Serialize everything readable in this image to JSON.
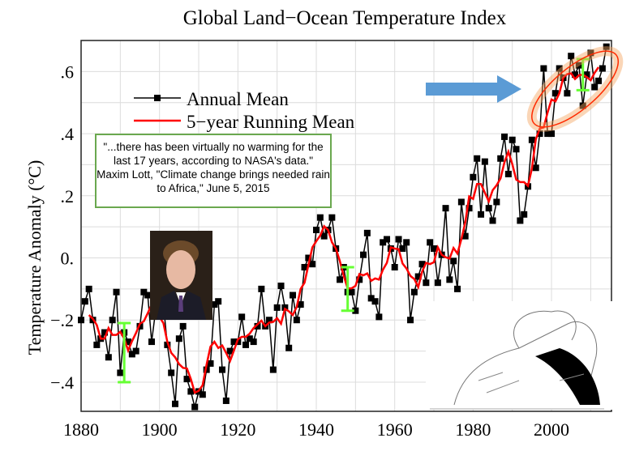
{
  "chart_data": {
    "type": "line",
    "title": "Global Land−Ocean Temperature Index",
    "xlabel": "",
    "ylabel": "Temperature Anomaly (°C)",
    "xlim": [
      1880,
      2015.3
    ],
    "ylim": [
      -0.494,
      0.7
    ],
    "grid": true,
    "x_ticks": [
      1880,
      1900,
      1920,
      1940,
      1960,
      1980,
      2000
    ],
    "x_tick_labels": [
      "1880",
      "1900",
      "1920",
      "1940",
      "1960",
      "1980",
      "2000"
    ],
    "y_ticks": [
      -0.4,
      -0.2,
      0,
      0.2,
      0.4,
      0.6
    ],
    "y_tick_labels": [
      "−.4",
      "−.2",
      "0.",
      ".2",
      ".4",
      ".6"
    ],
    "legend": {
      "placement": "top-left",
      "entries": [
        "Annual Mean",
        "5−year Running Mean"
      ]
    },
    "series": [
      {
        "name": "Annual Mean",
        "color": "#000000",
        "x_start": 1880,
        "values": [
          -0.2,
          -0.14,
          -0.1,
          -0.2,
          -0.28,
          -0.26,
          -0.24,
          -0.32,
          -0.2,
          -0.11,
          -0.37,
          -0.24,
          -0.27,
          -0.31,
          -0.3,
          -0.22,
          -0.11,
          -0.12,
          -0.27,
          -0.17,
          -0.08,
          -0.15,
          -0.28,
          -0.37,
          -0.47,
          -0.26,
          -0.22,
          -0.39,
          -0.43,
          -0.48,
          -0.43,
          -0.44,
          -0.36,
          -0.34,
          -0.15,
          -0.14,
          -0.36,
          -0.46,
          -0.3,
          -0.27,
          -0.27,
          -0.19,
          -0.28,
          -0.26,
          -0.27,
          -0.22,
          -0.1,
          -0.22,
          -0.2,
          -0.36,
          -0.16,
          -0.09,
          -0.16,
          -0.29,
          -0.12,
          -0.2,
          -0.15,
          -0.03,
          0.0,
          -0.02,
          0.09,
          0.13,
          0.07,
          0.09,
          0.13,
          0.03,
          -0.07,
          -0.03,
          -0.11,
          -0.11,
          -0.17,
          -0.07,
          0.01,
          0.08,
          -0.13,
          -0.14,
          -0.19,
          0.05,
          0.06,
          0.03,
          -0.03,
          0.06,
          0.03,
          0.05,
          -0.2,
          -0.11,
          -0.06,
          -0.02,
          -0.08,
          0.05,
          0.03,
          -0.08,
          0.01,
          0.16,
          -0.07,
          -0.01,
          -0.1,
          0.18,
          0.07,
          0.16,
          0.26,
          0.32,
          0.14,
          0.31,
          0.16,
          0.12,
          0.18,
          0.32,
          0.39,
          0.27,
          0.38,
          0.35,
          0.12,
          0.14,
          0.23,
          0.38,
          0.29,
          0.4,
          0.61,
          0.4,
          0.4,
          0.53,
          0.61,
          0.58,
          0.53,
          0.65,
          0.59,
          0.62,
          0.49,
          0.59,
          0.66,
          0.55,
          0.57,
          0.61,
          0.68
        ]
      },
      {
        "name": "5−year Running Mean",
        "color": "#ff0000",
        "window": 5
      }
    ],
    "annotations": {
      "error_bars": [
        {
          "year": 1891,
          "low": -0.4,
          "high": -0.21
        },
        {
          "year": 1948,
          "low": -0.17,
          "high": -0.03
        },
        {
          "year": 2008,
          "low": 0.54,
          "high": 0.64
        }
      ],
      "highlight": {
        "from_year": 1998,
        "to_year": 2014
      }
    }
  },
  "quote": {
    "line1": "\"...there has been virtually no warming for the",
    "line2": "last 17 years, according to NASA's data.\"",
    "line3": "Maxim Lott, \"Climate change brings needed rain",
    "line4": "to Africa,\" June 5, 2015"
  },
  "colors": {
    "arrow": "#5b9bd5",
    "highlight": "#ff2a00",
    "glow": "#f4a460",
    "error_bar": "#66ff33",
    "quote_border": "#6aa84f"
  }
}
